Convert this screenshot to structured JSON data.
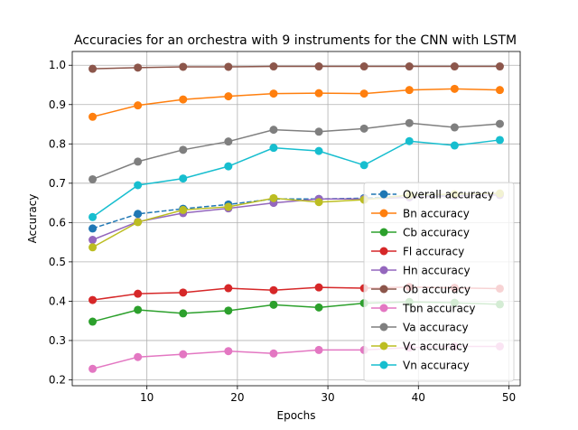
{
  "chart_data": {
    "type": "line",
    "title": "Accuracies for an orchestra with 9 instruments for the CNN with LSTM",
    "xlabel": "Epochs",
    "ylabel": "Accuracy",
    "xlim": [
      1.75,
      51.25
    ],
    "ylim": [
      0.185,
      1.035
    ],
    "xticks": [
      10,
      20,
      30,
      40,
      50
    ],
    "yticks": [
      0.2,
      0.3,
      0.4,
      0.5,
      0.6,
      0.7,
      0.8,
      0.9,
      1.0
    ],
    "xtick_labels": [
      "10",
      "20",
      "30",
      "40",
      "50"
    ],
    "ytick_labels": [
      "0.2",
      "0.3",
      "0.4",
      "0.5",
      "0.6",
      "0.7",
      "0.8",
      "0.9",
      "1.0"
    ],
    "grid": true,
    "legend_position": "center-right",
    "x": [
      4,
      9,
      14,
      19,
      24,
      29,
      34,
      39,
      44,
      49
    ],
    "series": [
      {
        "name": "Overall accuracy",
        "color": "#1f77b4",
        "dashed": true,
        "values": [
          0.585,
          0.622,
          0.635,
          0.646,
          0.66,
          0.66,
          0.662,
          0.668,
          0.67,
          0.672
        ]
      },
      {
        "name": "Bn accuracy",
        "color": "#ff7f0e",
        "dashed": false,
        "values": [
          0.869,
          0.898,
          0.913,
          0.921,
          0.928,
          0.929,
          0.928,
          0.937,
          0.94,
          0.937
        ]
      },
      {
        "name": "Cb accuracy",
        "color": "#2ca02c",
        "dashed": false,
        "values": [
          0.348,
          0.378,
          0.369,
          0.376,
          0.391,
          0.384,
          0.395,
          0.398,
          0.396,
          0.392
        ]
      },
      {
        "name": "Fl accuracy",
        "color": "#d62728",
        "dashed": false,
        "values": [
          0.403,
          0.419,
          0.422,
          0.433,
          0.428,
          0.435,
          0.433,
          0.436,
          0.434,
          0.432
        ]
      },
      {
        "name": "Hn accuracy",
        "color": "#9467bd",
        "dashed": false,
        "values": [
          0.556,
          0.602,
          0.624,
          0.636,
          0.65,
          0.66,
          0.66,
          0.664,
          0.668,
          0.67
        ]
      },
      {
        "name": "Ob accuracy",
        "color": "#8c564b",
        "dashed": false,
        "values": [
          0.991,
          0.994,
          0.996,
          0.996,
          0.997,
          0.997,
          0.997,
          0.997,
          0.997,
          0.997
        ]
      },
      {
        "name": "Tbn accuracy",
        "color": "#e377c2",
        "dashed": false,
        "values": [
          0.228,
          0.258,
          0.265,
          0.273,
          0.267,
          0.276,
          0.276,
          0.282,
          0.285,
          0.285
        ]
      },
      {
        "name": "Va accuracy",
        "color": "#7f7f7f",
        "dashed": false,
        "values": [
          0.71,
          0.755,
          0.785,
          0.806,
          0.836,
          0.831,
          0.839,
          0.853,
          0.842,
          0.851
        ]
      },
      {
        "name": "Vc accuracy",
        "color": "#bcbd22",
        "dashed": false,
        "values": [
          0.537,
          0.601,
          0.632,
          0.64,
          0.662,
          0.652,
          0.658,
          0.67,
          0.672,
          0.674
        ]
      },
      {
        "name": "Vn accuracy",
        "color": "#17becf",
        "dashed": false,
        "values": [
          0.614,
          0.695,
          0.712,
          0.743,
          0.79,
          0.782,
          0.746,
          0.807,
          0.796,
          0.81
        ]
      }
    ]
  }
}
